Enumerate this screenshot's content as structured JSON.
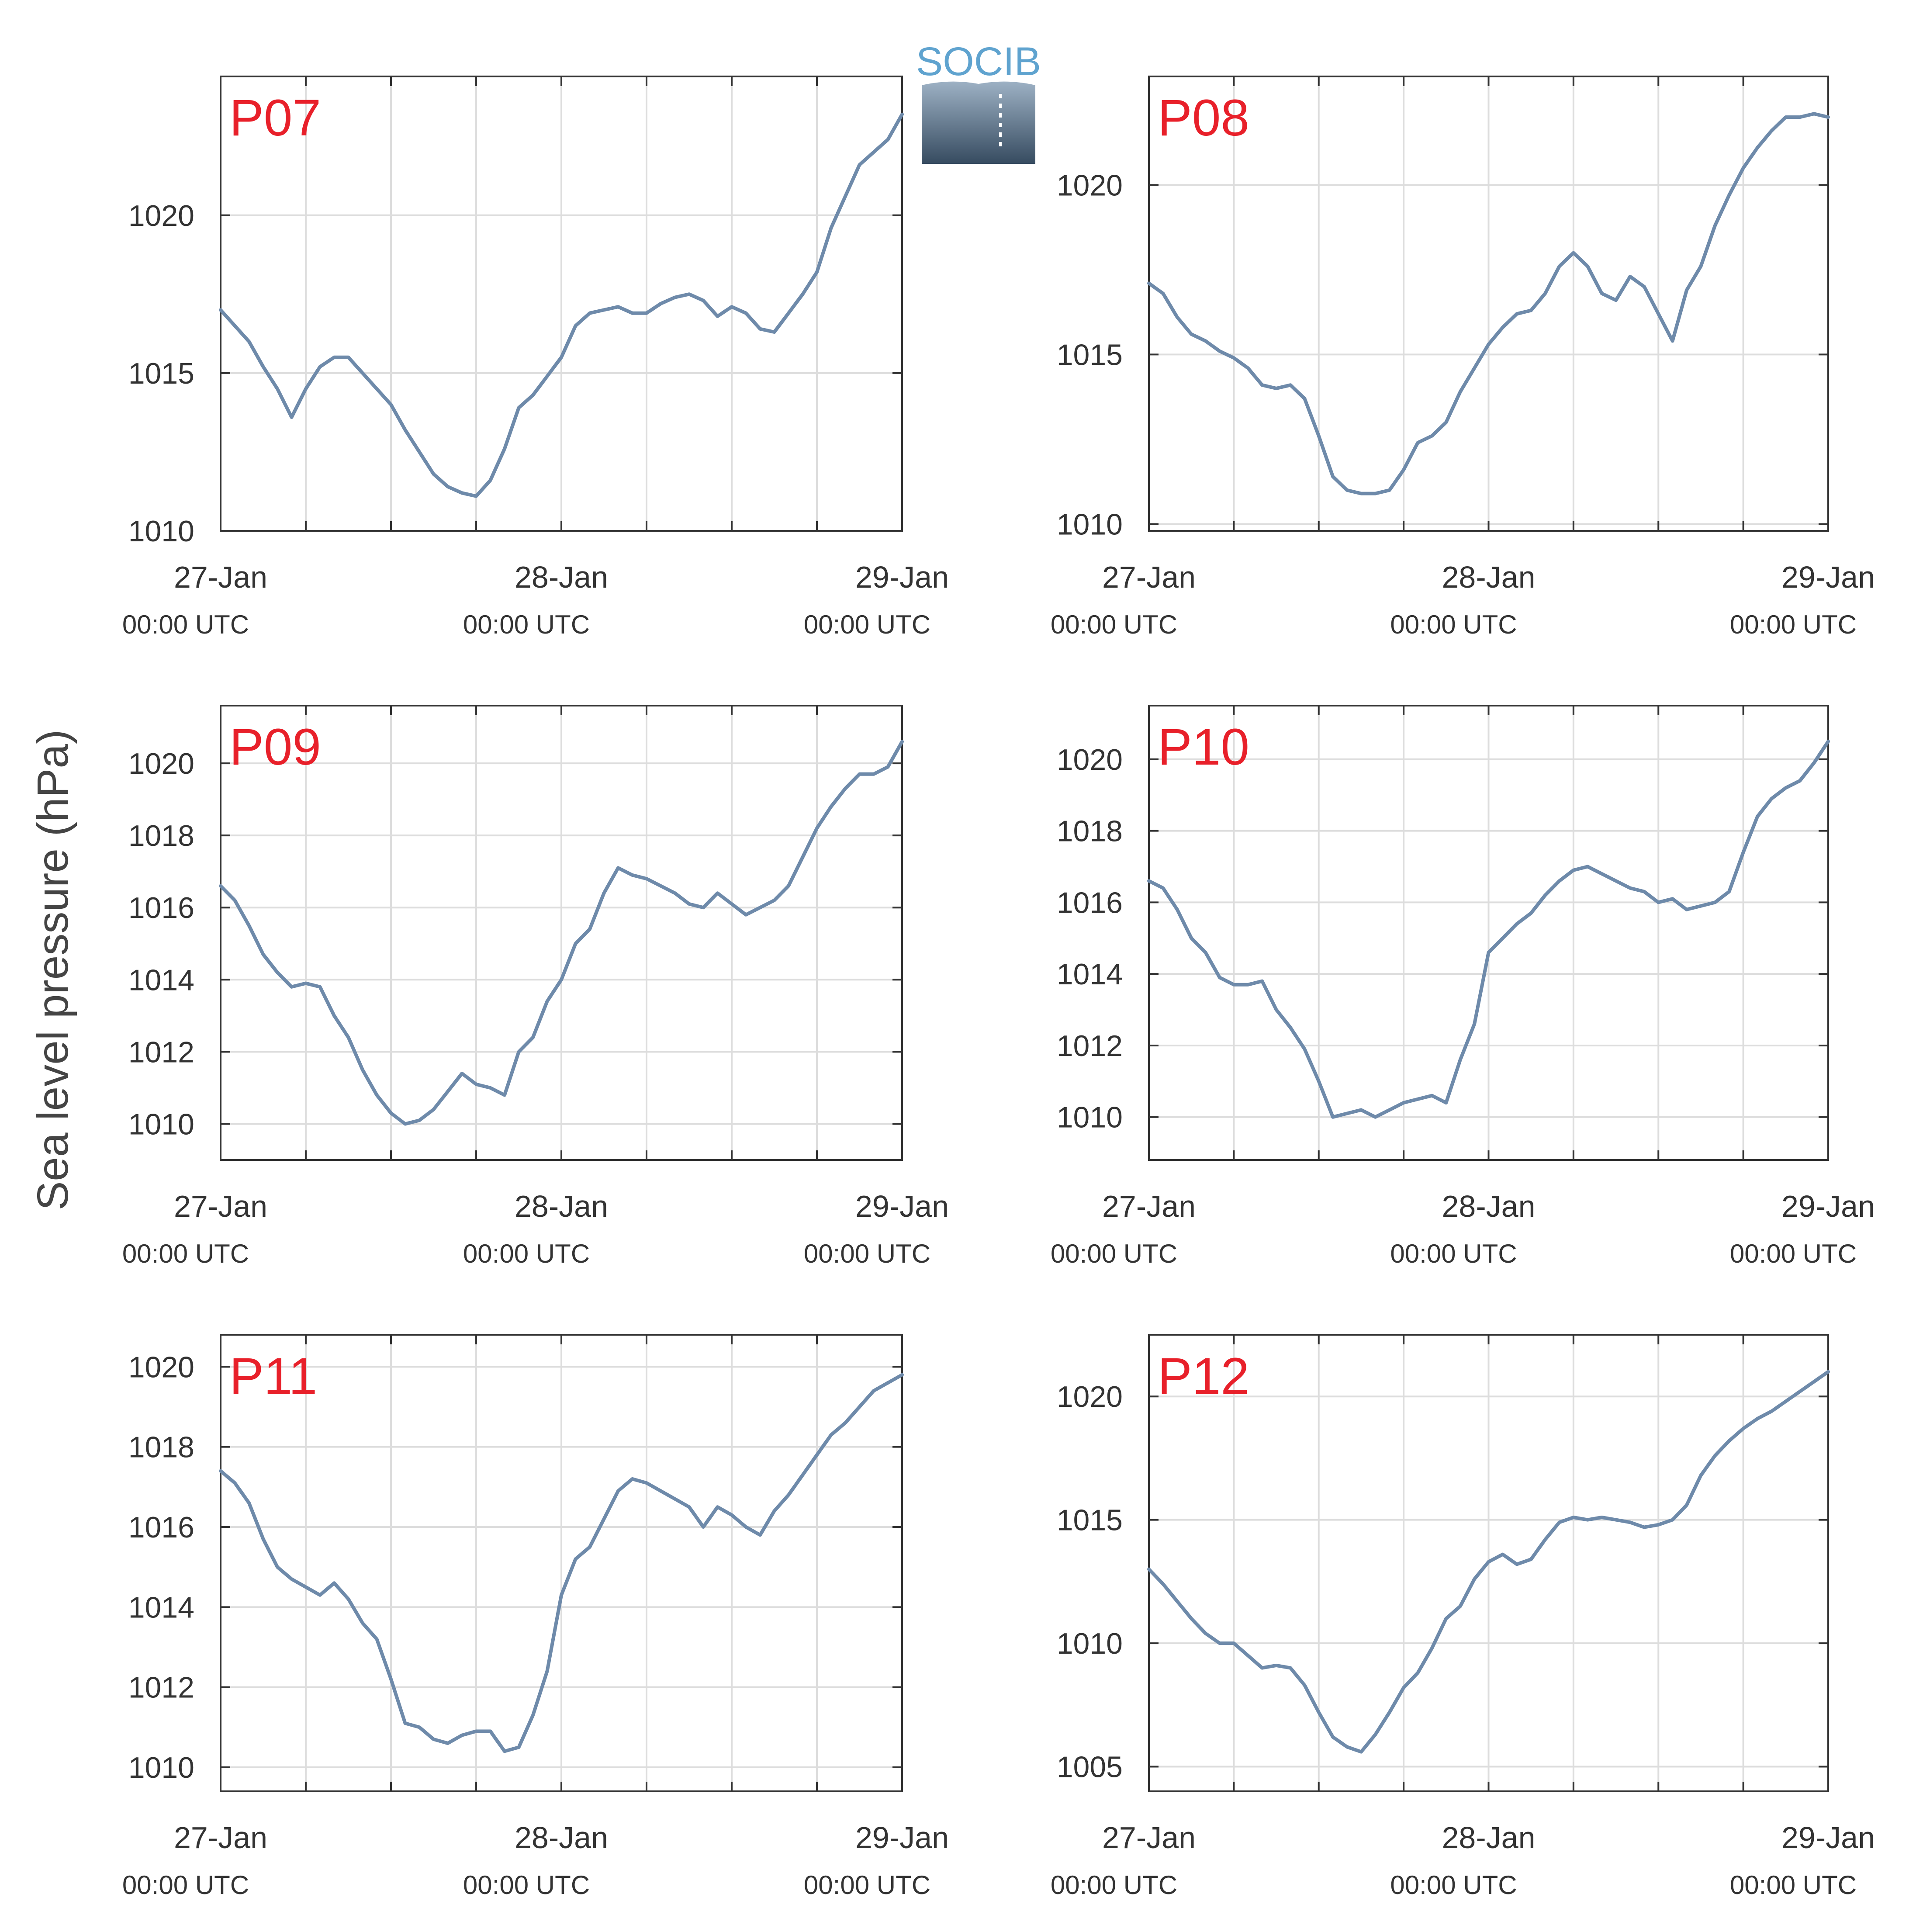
{
  "figure": {
    "ylabel": "Sea level pressure (hPa)",
    "logo_text": "SOCIB",
    "x_ticks": [
      {
        "label": "27-Jan",
        "sublabel": "00:00 UTC"
      },
      {
        "label": "28-Jan",
        "sublabel": "00:00 UTC"
      },
      {
        "label": "29-Jan",
        "sublabel": "00:00 UTC"
      }
    ]
  },
  "colors": {
    "series": "#6e8aaa",
    "panel_label": "#e8202a",
    "axis": "#333333",
    "grid": "#dddddd",
    "text": "#333333"
  },
  "chart_data": [
    {
      "type": "line",
      "label": "P07",
      "x_unit": "hours since 27-Jan 00:00 UTC",
      "xlim": [
        0,
        48
      ],
      "ylim": [
        1010,
        1024.4
      ],
      "yticks": [
        1010,
        1015,
        1020
      ],
      "grid": true,
      "x": [
        0,
        1,
        2,
        3,
        4,
        5,
        6,
        7,
        8,
        9,
        10,
        11,
        12,
        13,
        14,
        15,
        16,
        17,
        18,
        19,
        20,
        21,
        22,
        23,
        24,
        25,
        26,
        27,
        28,
        29,
        30,
        31,
        32,
        33,
        34,
        35,
        36,
        37,
        38,
        39,
        40,
        41,
        42,
        43,
        44,
        45,
        46,
        47,
        48
      ],
      "y": [
        1017.0,
        1016.5,
        1016.0,
        1015.2,
        1014.5,
        1013.6,
        1014.5,
        1015.2,
        1015.5,
        1015.5,
        1015.0,
        1014.5,
        1014.0,
        1013.2,
        1012.5,
        1011.8,
        1011.4,
        1011.2,
        1011.1,
        1011.6,
        1012.6,
        1013.9,
        1014.3,
        1014.9,
        1015.5,
        1016.5,
        1016.9,
        1017.0,
        1017.1,
        1016.9,
        1016.9,
        1017.2,
        1017.4,
        1017.5,
        1017.3,
        1016.8,
        1017.1,
        1016.9,
        1016.4,
        1016.3,
        1016.9,
        1017.5,
        1018.2,
        1019.6,
        1020.6,
        1021.6,
        1022.0,
        1022.4,
        1023.2
      ]
    },
    {
      "type": "line",
      "label": "P08",
      "x_unit": "hours since 27-Jan 00:00 UTC",
      "xlim": [
        0,
        48
      ],
      "ylim": [
        1009.8,
        1023.2
      ],
      "yticks": [
        1010,
        1015,
        1020
      ],
      "grid": true,
      "x": [
        0,
        1,
        2,
        3,
        4,
        5,
        6,
        7,
        8,
        9,
        10,
        11,
        12,
        13,
        14,
        15,
        16,
        17,
        18,
        19,
        20,
        21,
        22,
        23,
        24,
        25,
        26,
        27,
        28,
        29,
        30,
        31,
        32,
        33,
        34,
        35,
        36,
        37,
        38,
        39,
        40,
        41,
        42,
        43,
        44,
        45,
        46,
        47,
        48
      ],
      "y": [
        1017.1,
        1016.8,
        1016.1,
        1015.6,
        1015.4,
        1015.1,
        1014.9,
        1014.6,
        1014.1,
        1014.0,
        1014.1,
        1013.7,
        1012.6,
        1011.4,
        1011.0,
        1010.9,
        1010.9,
        1011.0,
        1011.6,
        1012.4,
        1012.6,
        1013.0,
        1013.9,
        1014.6,
        1015.3,
        1015.8,
        1016.2,
        1016.3,
        1016.8,
        1017.6,
        1018.0,
        1017.6,
        1016.8,
        1016.6,
        1017.3,
        1017.0,
        1016.2,
        1015.4,
        1016.9,
        1017.6,
        1018.8,
        1019.7,
        1020.5,
        1021.1,
        1021.6,
        1022.0,
        1022.0,
        1022.1,
        1022.0
      ]
    },
    {
      "type": "line",
      "label": "P09",
      "x_unit": "hours since 27-Jan 00:00 UTC",
      "xlim": [
        0,
        48
      ],
      "ylim": [
        1009.0,
        1021.6
      ],
      "yticks": [
        1010,
        1012,
        1014,
        1016,
        1018,
        1020
      ],
      "grid": true,
      "x": [
        0,
        1,
        2,
        3,
        4,
        5,
        6,
        7,
        8,
        9,
        10,
        11,
        12,
        13,
        14,
        15,
        16,
        17,
        18,
        19,
        20,
        21,
        22,
        23,
        24,
        25,
        26,
        27,
        28,
        29,
        30,
        31,
        32,
        33,
        34,
        35,
        36,
        37,
        38,
        39,
        40,
        41,
        42,
        43,
        44,
        45,
        46,
        47,
        48
      ],
      "y": [
        1016.6,
        1016.2,
        1015.5,
        1014.7,
        1014.2,
        1013.8,
        1013.9,
        1013.8,
        1013.0,
        1012.4,
        1011.5,
        1010.8,
        1010.3,
        1010.0,
        1010.1,
        1010.4,
        1010.9,
        1011.4,
        1011.1,
        1011.0,
        1010.8,
        1012.0,
        1012.4,
        1013.4,
        1014.0,
        1015.0,
        1015.4,
        1016.4,
        1017.1,
        1016.9,
        1016.8,
        1016.6,
        1016.4,
        1016.1,
        1016.0,
        1016.4,
        1016.1,
        1015.8,
        1016.0,
        1016.2,
        1016.6,
        1017.4,
        1018.2,
        1018.8,
        1019.3,
        1019.7,
        1019.7,
        1019.9,
        1020.6
      ]
    },
    {
      "type": "line",
      "label": "P10",
      "x_unit": "hours since 27-Jan 00:00 UTC",
      "xlim": [
        0,
        48
      ],
      "ylim": [
        1008.8,
        1021.5
      ],
      "yticks": [
        1010,
        1012,
        1014,
        1016,
        1018,
        1020
      ],
      "grid": true,
      "x": [
        0,
        1,
        2,
        3,
        4,
        5,
        6,
        7,
        8,
        9,
        10,
        11,
        12,
        13,
        14,
        15,
        16,
        17,
        18,
        19,
        20,
        21,
        22,
        23,
        24,
        25,
        26,
        27,
        28,
        29,
        30,
        31,
        32,
        33,
        34,
        35,
        36,
        37,
        38,
        39,
        40,
        41,
        42,
        43,
        44,
        45,
        46,
        47,
        48
      ],
      "y": [
        1016.6,
        1016.4,
        1015.8,
        1015.0,
        1014.6,
        1013.9,
        1013.7,
        1013.7,
        1013.8,
        1013.0,
        1012.5,
        1011.9,
        1011.0,
        1010.0,
        1010.1,
        1010.2,
        1010.0,
        1010.2,
        1010.4,
        1010.5,
        1010.6,
        1010.4,
        1011.6,
        1012.6,
        1014.6,
        1015.0,
        1015.4,
        1015.7,
        1016.2,
        1016.6,
        1016.9,
        1017.0,
        1016.8,
        1016.6,
        1016.4,
        1016.3,
        1016.0,
        1016.1,
        1015.8,
        1015.9,
        1016.0,
        1016.3,
        1017.4,
        1018.4,
        1018.9,
        1019.2,
        1019.4,
        1019.9,
        1020.5
      ]
    },
    {
      "type": "line",
      "label": "P11",
      "x_unit": "hours since 27-Jan 00:00 UTC",
      "xlim": [
        0,
        48
      ],
      "ylim": [
        1009.4,
        1020.8
      ],
      "yticks": [
        1010,
        1012,
        1014,
        1016,
        1018,
        1020
      ],
      "grid": true,
      "x": [
        0,
        1,
        2,
        3,
        4,
        5,
        6,
        7,
        8,
        9,
        10,
        11,
        12,
        13,
        14,
        15,
        16,
        17,
        18,
        19,
        20,
        21,
        22,
        23,
        24,
        25,
        26,
        27,
        28,
        29,
        30,
        31,
        32,
        33,
        34,
        35,
        36,
        37,
        38,
        39,
        40,
        41,
        42,
        43,
        44,
        45,
        46,
        47,
        48
      ],
      "y": [
        1017.4,
        1017.1,
        1016.6,
        1015.7,
        1015.0,
        1014.7,
        1014.5,
        1014.3,
        1014.6,
        1014.2,
        1013.6,
        1013.2,
        1012.2,
        1011.1,
        1011.0,
        1010.7,
        1010.6,
        1010.8,
        1010.9,
        1010.9,
        1010.4,
        1010.5,
        1011.3,
        1012.4,
        1014.3,
        1015.2,
        1015.5,
        1016.2,
        1016.9,
        1017.2,
        1017.1,
        1016.9,
        1016.7,
        1016.5,
        1016.0,
        1016.5,
        1016.3,
        1016.0,
        1015.8,
        1016.4,
        1016.8,
        1017.3,
        1017.8,
        1018.3,
        1018.6,
        1019.0,
        1019.4,
        1019.6,
        1019.8
      ]
    },
    {
      "type": "line",
      "label": "P12",
      "x_unit": "hours since 27-Jan 00:00 UTC",
      "xlim": [
        0,
        48
      ],
      "ylim": [
        1004.0,
        1022.5
      ],
      "yticks": [
        1005,
        1010,
        1015,
        1020
      ],
      "grid": true,
      "x": [
        0,
        1,
        2,
        3,
        4,
        5,
        6,
        7,
        8,
        9,
        10,
        11,
        12,
        13,
        14,
        15,
        16,
        17,
        18,
        19,
        20,
        21,
        22,
        23,
        24,
        25,
        26,
        27,
        28,
        29,
        30,
        31,
        32,
        33,
        34,
        35,
        36,
        37,
        38,
        39,
        40,
        41,
        42,
        43,
        44,
        45,
        46,
        47,
        48
      ],
      "y": [
        1013.0,
        1012.4,
        1011.7,
        1011.0,
        1010.4,
        1010.0,
        1010.0,
        1009.5,
        1009.0,
        1009.1,
        1009.0,
        1008.3,
        1007.2,
        1006.2,
        1005.8,
        1005.6,
        1006.3,
        1007.2,
        1008.2,
        1008.8,
        1009.8,
        1011.0,
        1011.5,
        1012.6,
        1013.3,
        1013.6,
        1013.2,
        1013.4,
        1014.2,
        1014.9,
        1015.1,
        1015.0,
        1015.1,
        1015.0,
        1014.9,
        1014.7,
        1014.8,
        1015.0,
        1015.6,
        1016.8,
        1017.6,
        1018.2,
        1018.7,
        1019.1,
        1019.4,
        1019.8,
        1020.2,
        1020.6,
        1021.0
      ]
    }
  ]
}
